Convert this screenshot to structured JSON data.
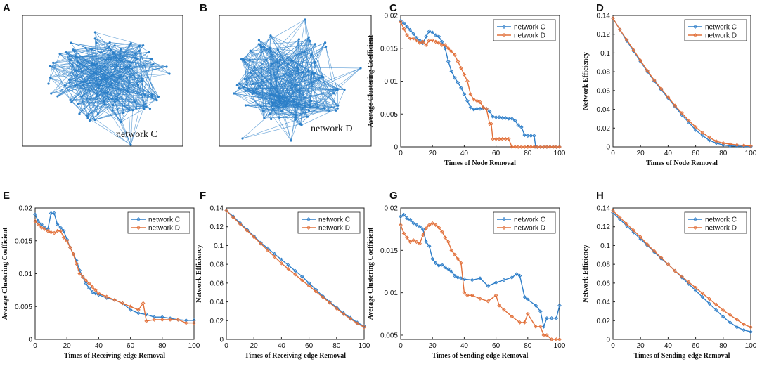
{
  "colors": {
    "network_c": "#2f7fc9",
    "network_d": "#e2703a",
    "graph": "#2b7fc8"
  },
  "panels": {
    "A": {
      "letter": "A",
      "label": "network C"
    },
    "B": {
      "letter": "B",
      "label": "network D"
    }
  },
  "chart_data": [
    {
      "panel": "C",
      "type": "line",
      "xlabel": "Times of Node Removal",
      "ylabel": "Average Clustering Coefficient",
      "xlim": [
        0,
        100
      ],
      "ylim": [
        0,
        0.02
      ],
      "xticks": [
        0,
        20,
        40,
        60,
        80,
        100
      ],
      "yticks": [
        0,
        0.005,
        0.01,
        0.015,
        0.02
      ],
      "ytick_labels": [
        "0",
        "0.005",
        "0.01",
        "0.015",
        "0.02"
      ],
      "legend": "top-right",
      "series": [
        {
          "name": "network C",
          "x": [
            0,
            2,
            4,
            6,
            8,
            10,
            12,
            14,
            16,
            18,
            20,
            22,
            24,
            26,
            28,
            30,
            32,
            34,
            36,
            38,
            40,
            42,
            44,
            46,
            48,
            50,
            52,
            54,
            56,
            58,
            60,
            62,
            64,
            66,
            68,
            70,
            72,
            74,
            76,
            78,
            80,
            82,
            84,
            85,
            86,
            88,
            90,
            92,
            94,
            96,
            98,
            100
          ],
          "y": [
            0.0192,
            0.0188,
            0.0183,
            0.0178,
            0.0172,
            0.0166,
            0.0162,
            0.0158,
            0.0168,
            0.0176,
            0.0174,
            0.017,
            0.0168,
            0.016,
            0.015,
            0.013,
            0.0115,
            0.0105,
            0.0098,
            0.009,
            0.008,
            0.007,
            0.006,
            0.0057,
            0.0058,
            0.0058,
            0.0059,
            0.0058,
            0.0054,
            0.0046,
            0.0045,
            0.0045,
            0.0044,
            0.0044,
            0.0043,
            0.0043,
            0.004,
            0.0033,
            0.003,
            0.0018,
            0.0017,
            0.0017,
            0.0017,
            0,
            0,
            0,
            0,
            0,
            0,
            0,
            0,
            0
          ]
        },
        {
          "name": "network D",
          "x": [
            0,
            2,
            4,
            6,
            8,
            10,
            12,
            14,
            16,
            18,
            20,
            22,
            24,
            26,
            28,
            30,
            32,
            34,
            36,
            38,
            40,
            42,
            44,
            46,
            48,
            50,
            52,
            54,
            56,
            57,
            58,
            60,
            62,
            64,
            66,
            68,
            70,
            72,
            74,
            76,
            78,
            80,
            82,
            84,
            86,
            88,
            90,
            92,
            94,
            96,
            98,
            100
          ],
          "y": [
            0.019,
            0.018,
            0.017,
            0.0165,
            0.0165,
            0.0162,
            0.0158,
            0.016,
            0.0155,
            0.0162,
            0.0162,
            0.016,
            0.0158,
            0.0155,
            0.0155,
            0.015,
            0.0145,
            0.014,
            0.013,
            0.012,
            0.011,
            0.01,
            0.008,
            0.0072,
            0.007,
            0.0068,
            0.006,
            0.0058,
            0.0035,
            0.0035,
            0.0012,
            0.0012,
            0.0012,
            0.0012,
            0.0012,
            0.0012,
            0,
            0,
            0,
            0,
            0,
            0,
            0,
            0,
            0,
            0,
            0,
            0,
            0,
            0,
            0,
            0
          ]
        }
      ]
    },
    {
      "panel": "D",
      "type": "line",
      "xlabel": "Times of Node Removal",
      "ylabel": "Network Efficiency",
      "xlim": [
        0,
        100
      ],
      "ylim": [
        0,
        0.14
      ],
      "xticks": [
        0,
        20,
        40,
        60,
        80,
        100
      ],
      "yticks": [
        0,
        0.02,
        0.04,
        0.06,
        0.08,
        0.1,
        0.12,
        0.14
      ],
      "ytick_labels": [
        "0",
        "0.02",
        "0.04",
        "0.06",
        "0.08",
        "0.1",
        "0.12",
        "0.14"
      ],
      "legend": "top-right",
      "series": [
        {
          "name": "network C",
          "x": [
            0,
            5,
            10,
            15,
            20,
            25,
            30,
            35,
            40,
            45,
            50,
            55,
            60,
            65,
            70,
            75,
            80,
            85,
            90,
            95,
            100
          ],
          "y": [
            0.137,
            0.125,
            0.113,
            0.102,
            0.091,
            0.08,
            0.07,
            0.061,
            0.052,
            0.043,
            0.034,
            0.026,
            0.018,
            0.012,
            0.007,
            0.004,
            0.002,
            0.001,
            0.0008,
            0.0005,
            0.0003
          ]
        },
        {
          "name": "network D",
          "x": [
            0,
            5,
            10,
            15,
            20,
            25,
            30,
            35,
            40,
            45,
            50,
            55,
            60,
            65,
            70,
            75,
            80,
            85,
            90,
            95,
            100
          ],
          "y": [
            0.137,
            0.125,
            0.114,
            0.103,
            0.092,
            0.081,
            0.071,
            0.062,
            0.053,
            0.044,
            0.036,
            0.028,
            0.021,
            0.015,
            0.01,
            0.006,
            0.004,
            0.003,
            0.002,
            0.0015,
            0.001
          ]
        }
      ]
    },
    {
      "panel": "E",
      "type": "line",
      "xlabel": "Times of Receiving-edge Removal",
      "ylabel": "Average Clustering Coefficient",
      "xlim": [
        0,
        100
      ],
      "ylim": [
        0,
        0.02
      ],
      "xticks": [
        0,
        20,
        40,
        60,
        80,
        100
      ],
      "yticks": [
        0,
        0.005,
        0.01,
        0.015,
        0.02
      ],
      "ytick_labels": [
        "0",
        "0.005",
        "0.01",
        "0.015",
        "0.02"
      ],
      "legend": "top-right",
      "series": [
        {
          "name": "network C",
          "x": [
            0,
            2,
            4,
            6,
            8,
            10,
            12,
            14,
            16,
            18,
            20,
            22,
            24,
            26,
            28,
            30,
            32,
            34,
            36,
            38,
            40,
            45,
            50,
            55,
            60,
            65,
            70,
            75,
            80,
            85,
            90,
            95,
            100
          ],
          "y": [
            0.019,
            0.018,
            0.0175,
            0.017,
            0.0168,
            0.0192,
            0.0192,
            0.0175,
            0.017,
            0.0165,
            0.0152,
            0.014,
            0.013,
            0.012,
            0.0105,
            0.0095,
            0.0085,
            0.0078,
            0.0072,
            0.007,
            0.0068,
            0.0063,
            0.006,
            0.0055,
            0.0045,
            0.004,
            0.0038,
            0.0034,
            0.0034,
            0.0032,
            0.003,
            0.0029,
            0.0029
          ]
        },
        {
          "name": "network D",
          "x": [
            0,
            2,
            4,
            6,
            8,
            10,
            12,
            14,
            16,
            18,
            20,
            22,
            24,
            26,
            28,
            30,
            32,
            34,
            36,
            38,
            40,
            45,
            50,
            55,
            60,
            65,
            68,
            70,
            75,
            80,
            85,
            90,
            95,
            100
          ],
          "y": [
            0.018,
            0.0175,
            0.017,
            0.0168,
            0.0165,
            0.0163,
            0.0162,
            0.0165,
            0.0165,
            0.0155,
            0.015,
            0.014,
            0.013,
            0.0115,
            0.01,
            0.0095,
            0.009,
            0.0085,
            0.008,
            0.0075,
            0.007,
            0.0065,
            0.006,
            0.0055,
            0.005,
            0.0045,
            0.0055,
            0.0028,
            0.003,
            0.003,
            0.003,
            0.003,
            0.0025,
            0.0025
          ]
        }
      ]
    },
    {
      "panel": "F",
      "type": "line",
      "xlabel": "Times of Receiving-edge Removal",
      "ylabel": "Network Efficiency",
      "xlim": [
        0,
        100
      ],
      "ylim": [
        0,
        0.14
      ],
      "xticks": [
        0,
        20,
        40,
        60,
        80,
        100
      ],
      "yticks": [
        0,
        0.02,
        0.04,
        0.06,
        0.08,
        0.1,
        0.12,
        0.14
      ],
      "ytick_labels": [
        "0",
        "0.02",
        "0.04",
        "0.06",
        "0.08",
        "0.1",
        "0.12",
        "0.14"
      ],
      "legend": "top-right",
      "series": [
        {
          "name": "network C",
          "x": [
            0,
            5,
            10,
            15,
            20,
            25,
            30,
            35,
            40,
            45,
            50,
            55,
            60,
            65,
            70,
            75,
            80,
            85,
            90,
            95,
            100
          ],
          "y": [
            0.137,
            0.131,
            0.124,
            0.117,
            0.11,
            0.103,
            0.097,
            0.091,
            0.085,
            0.079,
            0.073,
            0.067,
            0.06,
            0.053,
            0.046,
            0.04,
            0.034,
            0.028,
            0.023,
            0.018,
            0.014
          ]
        },
        {
          "name": "network D",
          "x": [
            0,
            5,
            10,
            15,
            20,
            25,
            30,
            35,
            40,
            45,
            50,
            55,
            60,
            65,
            70,
            75,
            80,
            85,
            90,
            95,
            100
          ],
          "y": [
            0.137,
            0.13,
            0.123,
            0.116,
            0.109,
            0.102,
            0.095,
            0.088,
            0.081,
            0.075,
            0.069,
            0.063,
            0.057,
            0.051,
            0.045,
            0.039,
            0.033,
            0.027,
            0.022,
            0.017,
            0.013
          ]
        }
      ]
    },
    {
      "panel": "G",
      "type": "line",
      "xlabel": "Times of Sending-edge Removal",
      "ylabel": "Average Clustering Coefficient",
      "xlim": [
        0,
        100
      ],
      "ylim": [
        0.0045,
        0.02
      ],
      "xticks": [
        0,
        20,
        40,
        60,
        80,
        100
      ],
      "yticks": [
        0.005,
        0.01,
        0.015,
        0.02
      ],
      "ytick_labels": [
        "0.005",
        "0.01",
        "0.015",
        "0.02"
      ],
      "legend": "top-right",
      "series": [
        {
          "name": "network C",
          "x": [
            0,
            2,
            4,
            6,
            8,
            10,
            12,
            14,
            16,
            18,
            20,
            22,
            24,
            26,
            28,
            30,
            32,
            34,
            36,
            38,
            40,
            45,
            50,
            55,
            60,
            65,
            70,
            73,
            75,
            78,
            80,
            85,
            88,
            90,
            92,
            95,
            98,
            100
          ],
          "y": [
            0.019,
            0.0192,
            0.0188,
            0.0186,
            0.0182,
            0.018,
            0.0178,
            0.0175,
            0.016,
            0.0155,
            0.014,
            0.0135,
            0.0132,
            0.0133,
            0.013,
            0.0128,
            0.0125,
            0.012,
            0.0118,
            0.0117,
            0.0116,
            0.0115,
            0.0117,
            0.0108,
            0.0112,
            0.0115,
            0.0118,
            0.0122,
            0.012,
            0.0095,
            0.0092,
            0.0085,
            0.0078,
            0.006,
            0.007,
            0.007,
            0.007,
            0.0085
          ]
        },
        {
          "name": "network D",
          "x": [
            0,
            2,
            4,
            6,
            8,
            10,
            12,
            14,
            16,
            18,
            20,
            22,
            24,
            26,
            28,
            30,
            32,
            34,
            36,
            38,
            40,
            42,
            45,
            50,
            55,
            60,
            62,
            65,
            70,
            75,
            78,
            80,
            85,
            88,
            90,
            92,
            95,
            98,
            100
          ],
          "y": [
            0.018,
            0.017,
            0.0165,
            0.016,
            0.0162,
            0.016,
            0.0158,
            0.0168,
            0.0176,
            0.018,
            0.0182,
            0.018,
            0.0177,
            0.0172,
            0.0165,
            0.016,
            0.015,
            0.0145,
            0.014,
            0.0135,
            0.01,
            0.0097,
            0.0097,
            0.0093,
            0.009,
            0.0097,
            0.0085,
            0.008,
            0.0072,
            0.0065,
            0.0065,
            0.0075,
            0.006,
            0.006,
            0.005,
            0.005,
            0.0045,
            0.0045,
            0.0045
          ]
        }
      ]
    },
    {
      "panel": "H",
      "type": "line",
      "xlabel": "Times of Sending-edge Removal",
      "ylabel": "Network Efficiency",
      "xlim": [
        0,
        100
      ],
      "ylim": [
        0,
        0.14
      ],
      "xticks": [
        0,
        20,
        40,
        60,
        80,
        100
      ],
      "yticks": [
        0,
        0.02,
        0.04,
        0.06,
        0.08,
        0.1,
        0.12,
        0.14
      ],
      "ytick_labels": [
        "0",
        "0.02",
        "0.04",
        "0.06",
        "0.08",
        "0.1",
        "0.12",
        "0.14"
      ],
      "legend": "top-right",
      "series": [
        {
          "name": "network C",
          "x": [
            0,
            5,
            10,
            15,
            20,
            25,
            30,
            35,
            40,
            45,
            50,
            55,
            60,
            65,
            70,
            75,
            80,
            85,
            90,
            95,
            100
          ],
          "y": [
            0.135,
            0.128,
            0.121,
            0.114,
            0.107,
            0.1,
            0.093,
            0.086,
            0.08,
            0.073,
            0.066,
            0.059,
            0.052,
            0.045,
            0.038,
            0.031,
            0.024,
            0.018,
            0.013,
            0.01,
            0.008
          ]
        },
        {
          "name": "network D",
          "x": [
            0,
            5,
            10,
            15,
            20,
            25,
            30,
            35,
            40,
            45,
            50,
            55,
            60,
            65,
            70,
            75,
            80,
            85,
            90,
            95,
            100
          ],
          "y": [
            0.137,
            0.13,
            0.123,
            0.116,
            0.109,
            0.101,
            0.094,
            0.087,
            0.08,
            0.073,
            0.067,
            0.061,
            0.055,
            0.049,
            0.043,
            0.037,
            0.031,
            0.026,
            0.021,
            0.016,
            0.013
          ]
        }
      ]
    }
  ]
}
